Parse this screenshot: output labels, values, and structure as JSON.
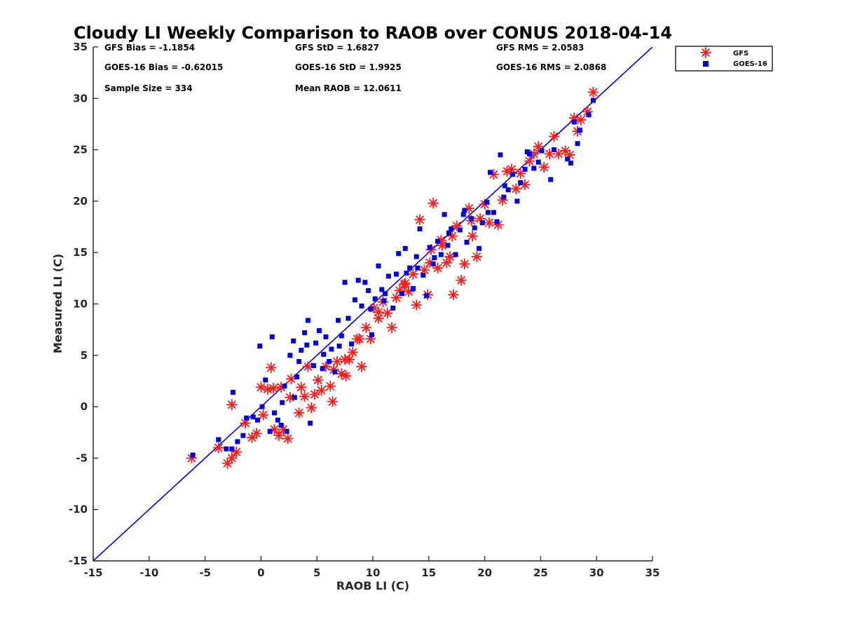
{
  "chart_data": {
    "type": "scatter",
    "title": "Cloudy LI Weekly Comparison to RAOB over CONUS 2018-04-14",
    "xlabel": "RAOB LI (C)",
    "ylabel": "Measured LI (C)",
    "xlim": [
      -15,
      35
    ],
    "ylim": [
      -15,
      35
    ],
    "xticks": [
      "-15",
      "-10",
      "-5",
      "0",
      "5",
      "10",
      "15",
      "20",
      "25",
      "30",
      "35"
    ],
    "yticks": [
      "-15",
      "-10",
      "-5",
      "0",
      "5",
      "10",
      "15",
      "20",
      "25",
      "30",
      "35"
    ],
    "grid": false,
    "legend_position": "outside-top-right",
    "reference_line": {
      "type": "y=x",
      "color": "#0000e6"
    },
    "stats": [
      [
        "GFS Bias = -1.1854",
        "GFS StD = 1.6827",
        "GFS RMS = 2.0583"
      ],
      [
        "GOES-16 Bias = -0.62015",
        "GOES-16 StD = 1.9925",
        "GOES-16 RMS = 2.0868"
      ],
      [
        "Sample Size = 334",
        "Mean RAOB = 12.0611"
      ]
    ],
    "series": [
      {
        "name": "GFS",
        "marker": "asterisk",
        "color": "#ff1a1a",
        "points": [
          [
            -6.2,
            -5.0
          ],
          [
            -3.8,
            -4.0
          ],
          [
            -3.0,
            -5.5
          ],
          [
            -2.6,
            -5.0
          ],
          [
            -2.2,
            -4.4
          ],
          [
            -2.6,
            0.2
          ],
          [
            -1.4,
            -1.6
          ],
          [
            -0.8,
            -3.0
          ],
          [
            -0.4,
            -2.6
          ],
          [
            0.0,
            1.9
          ],
          [
            0.2,
            -0.8
          ],
          [
            0.6,
            1.7
          ],
          [
            0.9,
            3.8
          ],
          [
            1.2,
            -2.2
          ],
          [
            1.6,
            -2.8
          ],
          [
            2.0,
            -2.2
          ],
          [
            2.4,
            -3.1
          ],
          [
            2.6,
            0.9
          ],
          [
            1.1,
            1.8
          ],
          [
            1.8,
            1.9
          ],
          [
            2.7,
            2.7
          ],
          [
            3.4,
            -0.6
          ],
          [
            3.6,
            1.9
          ],
          [
            3.9,
            1.0
          ],
          [
            4.2,
            3.9
          ],
          [
            4.5,
            -0.1
          ],
          [
            4.8,
            1.2
          ],
          [
            5.1,
            2.6
          ],
          [
            5.4,
            1.6
          ],
          [
            5.8,
            3.9
          ],
          [
            6.2,
            2.0
          ],
          [
            6.4,
            0.5
          ],
          [
            6.8,
            4.4
          ],
          [
            7.2,
            3.2
          ],
          [
            7.6,
            3.0
          ],
          [
            7.9,
            4.6
          ],
          [
            8.2,
            5.3
          ],
          [
            8.6,
            6.6
          ],
          [
            9.0,
            3.9
          ],
          [
            9.4,
            7.7
          ],
          [
            9.8,
            6.6
          ],
          [
            10.1,
            9.6
          ],
          [
            10.5,
            8.6
          ],
          [
            10.9,
            10.2
          ],
          [
            11.3,
            9.1
          ],
          [
            11.7,
            7.7
          ],
          [
            12.1,
            10.6
          ],
          [
            12.4,
            11.3
          ],
          [
            12.8,
            11.9
          ],
          [
            13.2,
            11.2
          ],
          [
            13.6,
            12.9
          ],
          [
            13.9,
            9.9
          ],
          [
            14.2,
            18.2
          ],
          [
            14.6,
            13.3
          ],
          [
            14.9,
            10.9
          ],
          [
            15.2,
            15.3
          ],
          [
            15.4,
            19.8
          ],
          [
            15.8,
            13.5
          ],
          [
            16.2,
            15.7
          ],
          [
            16.6,
            14.0
          ],
          [
            16.9,
            14.6
          ],
          [
            17.2,
            10.9
          ],
          [
            17.5,
            17.6
          ],
          [
            17.9,
            12.3
          ],
          [
            18.2,
            13.9
          ],
          [
            18.6,
            19.3
          ],
          [
            18.9,
            16.6
          ],
          [
            19.3,
            14.6
          ],
          [
            19.6,
            18.3
          ],
          [
            20.0,
            19.7
          ],
          [
            20.4,
            17.9
          ],
          [
            20.8,
            22.6
          ],
          [
            21.2,
            17.7
          ],
          [
            21.6,
            20.1
          ],
          [
            22.0,
            22.9
          ],
          [
            22.4,
            23.1
          ],
          [
            22.8,
            21.2
          ],
          [
            23.2,
            22.7
          ],
          [
            23.6,
            21.6
          ],
          [
            24.0,
            23.9
          ],
          [
            24.4,
            24.6
          ],
          [
            24.8,
            25.3
          ],
          [
            25.3,
            23.3
          ],
          [
            25.8,
            24.6
          ],
          [
            26.2,
            26.3
          ],
          [
            26.6,
            24.6
          ],
          [
            27.2,
            24.9
          ],
          [
            27.6,
            24.5
          ],
          [
            28.0,
            28.1
          ],
          [
            28.3,
            26.8
          ],
          [
            28.6,
            27.9
          ],
          [
            29.2,
            28.7
          ],
          [
            29.7,
            30.6
          ],
          [
            7.5,
            4.6
          ],
          [
            6.5,
            3.6
          ],
          [
            8.8,
            6.6
          ],
          [
            10.5,
            9.2
          ],
          [
            12.9,
            12.0
          ],
          [
            15.1,
            14.0
          ],
          [
            16.1,
            16.2
          ],
          [
            17.1,
            16.6
          ],
          [
            18.8,
            18.1
          ]
        ]
      },
      {
        "name": "GOES-16",
        "marker": "square",
        "color": "#0000e6",
        "points": [
          [
            -6.1,
            -4.7
          ],
          [
            -3.8,
            -3.2
          ],
          [
            -3.1,
            -4.1
          ],
          [
            -2.6,
            -4.1
          ],
          [
            -2.5,
            1.4
          ],
          [
            -2.1,
            -3.4
          ],
          [
            -1.6,
            -2.8
          ],
          [
            -1.3,
            -1.1
          ],
          [
            -0.7,
            -1.0
          ],
          [
            -0.3,
            -1.3
          ],
          [
            0.1,
            0.0
          ],
          [
            -0.1,
            5.9
          ],
          [
            0.4,
            2.6
          ],
          [
            0.8,
            -2.4
          ],
          [
            1.0,
            6.8
          ],
          [
            1.2,
            -0.6
          ],
          [
            1.5,
            -1.3
          ],
          [
            1.8,
            -1.8
          ],
          [
            2.1,
            2.0
          ],
          [
            2.3,
            -2.4
          ],
          [
            2.6,
            5.0
          ],
          [
            2.9,
            6.4
          ],
          [
            3.2,
            2.9
          ],
          [
            3.4,
            4.4
          ],
          [
            3.6,
            5.5
          ],
          [
            3.9,
            7.2
          ],
          [
            4.1,
            6.0
          ],
          [
            4.2,
            8.4
          ],
          [
            4.4,
            -1.6
          ],
          [
            4.7,
            4.0
          ],
          [
            4.9,
            6.2
          ],
          [
            5.2,
            7.4
          ],
          [
            5.5,
            3.7
          ],
          [
            5.8,
            6.8
          ],
          [
            6.1,
            4.4
          ],
          [
            6.3,
            5.6
          ],
          [
            6.6,
            3.4
          ],
          [
            6.9,
            8.4
          ],
          [
            7.2,
            6.9
          ],
          [
            7.5,
            12.1
          ],
          [
            7.8,
            8.6
          ],
          [
            8.1,
            6.1
          ],
          [
            8.4,
            10.4
          ],
          [
            8.7,
            12.3
          ],
          [
            9.0,
            9.8
          ],
          [
            9.3,
            12.1
          ],
          [
            9.6,
            11.3
          ],
          [
            9.9,
            7.0
          ],
          [
            10.2,
            10.5
          ],
          [
            10.5,
            13.7
          ],
          [
            10.8,
            11.4
          ],
          [
            11.1,
            11.0
          ],
          [
            11.4,
            12.7
          ],
          [
            11.8,
            9.6
          ],
          [
            12.1,
            12.9
          ],
          [
            12.3,
            14.9
          ],
          [
            12.6,
            11.0
          ],
          [
            12.9,
            15.4
          ],
          [
            13.3,
            13.5
          ],
          [
            13.6,
            11.5
          ],
          [
            13.9,
            14.6
          ],
          [
            14.2,
            17.3
          ],
          [
            14.5,
            12.8
          ],
          [
            14.8,
            10.8
          ],
          [
            15.1,
            15.5
          ],
          [
            15.4,
            13.9
          ],
          [
            15.8,
            16.1
          ],
          [
            16.1,
            14.8
          ],
          [
            16.4,
            18.7
          ],
          [
            16.7,
            15.7
          ],
          [
            17.0,
            17.3
          ],
          [
            17.4,
            14.8
          ],
          [
            17.8,
            17.2
          ],
          [
            18.1,
            18.7
          ],
          [
            18.4,
            16.0
          ],
          [
            18.8,
            18.3
          ],
          [
            19.1,
            17.4
          ],
          [
            19.5,
            15.4
          ],
          [
            19.8,
            17.9
          ],
          [
            20.2,
            19.9
          ],
          [
            20.5,
            22.8
          ],
          [
            20.8,
            18.9
          ],
          [
            21.1,
            18.0
          ],
          [
            21.4,
            24.5
          ],
          [
            21.7,
            20.4
          ],
          [
            22.1,
            21.1
          ],
          [
            22.5,
            22.6
          ],
          [
            22.9,
            20.0
          ],
          [
            23.2,
            21.8
          ],
          [
            23.6,
            23.1
          ],
          [
            24.0,
            24.6
          ],
          [
            24.4,
            23.2
          ],
          [
            24.8,
            23.8
          ],
          [
            25.1,
            24.9
          ],
          [
            25.9,
            22.1
          ],
          [
            26.2,
            25.0
          ],
          [
            27.4,
            24.1
          ],
          [
            27.7,
            23.7
          ],
          [
            28.0,
            27.7
          ],
          [
            28.3,
            25.6
          ],
          [
            28.5,
            26.9
          ],
          [
            29.3,
            28.4
          ],
          [
            29.7,
            29.8
          ],
          [
            1.9,
            0.4
          ],
          [
            3.0,
            0.9
          ],
          [
            5.6,
            5.1
          ],
          [
            7.0,
            5.9
          ],
          [
            9.8,
            9.5
          ],
          [
            11.0,
            10.3
          ],
          [
            13.0,
            13.0
          ],
          [
            14.0,
            13.5
          ],
          [
            15.5,
            14.5
          ],
          [
            16.8,
            16.9
          ],
          [
            18.2,
            19.1
          ],
          [
            20.3,
            18.9
          ],
          [
            21.8,
            21.5
          ],
          [
            23.8,
            24.8
          ]
        ]
      }
    ]
  }
}
